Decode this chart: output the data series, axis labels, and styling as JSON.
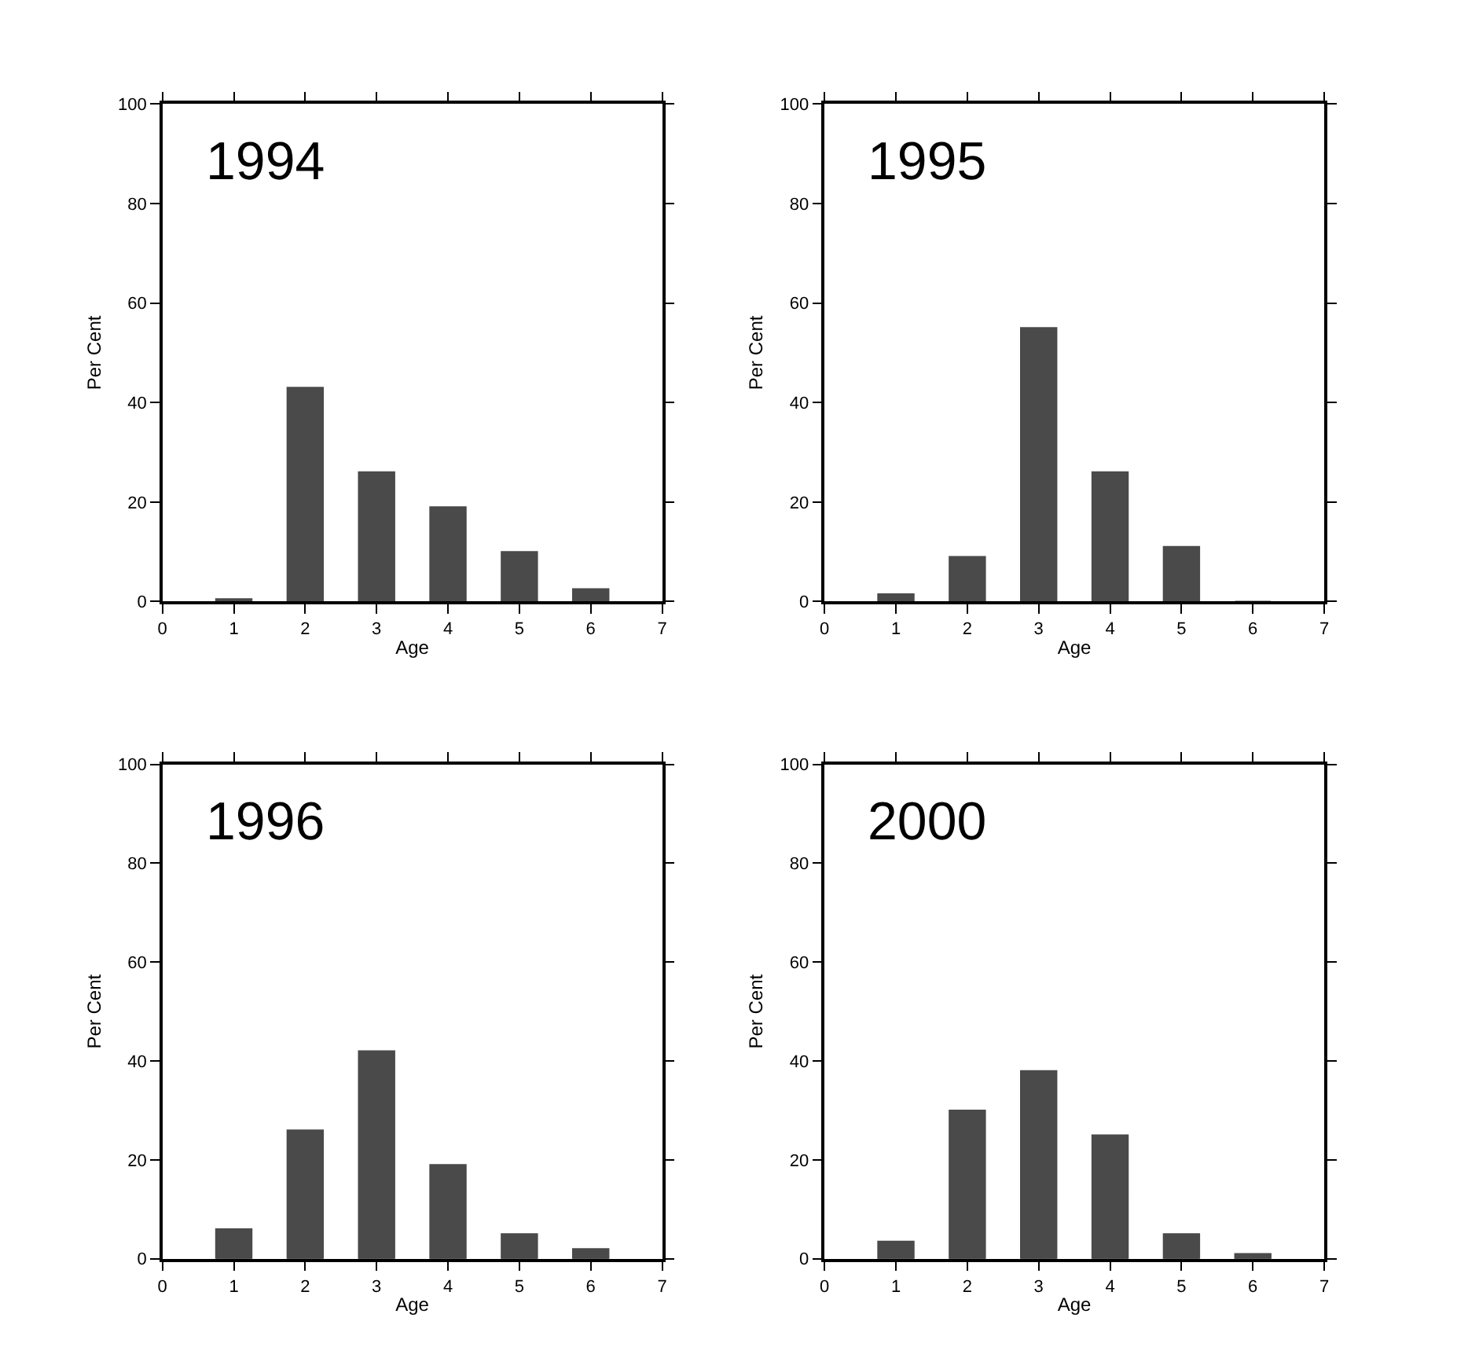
{
  "chart_data": [
    {
      "type": "bar",
      "title": "1994",
      "xlabel": "Age",
      "ylabel": "Per Cent",
      "x": [
        1,
        2,
        3,
        4,
        5,
        6
      ],
      "values": [
        0.5,
        43,
        26,
        19,
        10,
        2.5
      ],
      "color": "#4a4a4a",
      "xlim": [
        0,
        7
      ],
      "xticks": [
        0,
        1,
        2,
        3,
        4,
        5,
        6,
        7
      ],
      "ylim": [
        0,
        100
      ],
      "yticks": [
        0,
        20,
        40,
        60,
        80,
        100
      ]
    },
    {
      "type": "bar",
      "title": "1995",
      "xlabel": "Age",
      "ylabel": "Per Cent",
      "x": [
        1,
        2,
        3,
        4,
        5,
        6
      ],
      "values": [
        1.5,
        9,
        55,
        26,
        11,
        0
      ],
      "color": "#4a4a4a",
      "xlim": [
        0,
        7
      ],
      "xticks": [
        0,
        1,
        2,
        3,
        4,
        5,
        6,
        7
      ],
      "ylim": [
        0,
        100
      ],
      "yticks": [
        0,
        20,
        40,
        60,
        80,
        100
      ]
    },
    {
      "type": "bar",
      "title": "1996",
      "xlabel": "Age",
      "ylabel": "Per Cent",
      "x": [
        1,
        2,
        3,
        4,
        5,
        6
      ],
      "values": [
        6,
        26,
        42,
        19,
        5,
        2
      ],
      "color": "#4a4a4a",
      "xlim": [
        0,
        7
      ],
      "xticks": [
        0,
        1,
        2,
        3,
        4,
        5,
        6,
        7
      ],
      "ylim": [
        0,
        100
      ],
      "yticks": [
        0,
        20,
        40,
        60,
        80,
        100
      ]
    },
    {
      "type": "bar",
      "title": "2000",
      "xlabel": "Age",
      "ylabel": "Per Cent",
      "x": [
        1,
        2,
        3,
        4,
        5,
        6
      ],
      "values": [
        3.5,
        30,
        38,
        25,
        5,
        1
      ],
      "color": "#4a4a4a",
      "xlim": [
        0,
        7
      ],
      "xticks": [
        0,
        1,
        2,
        3,
        4,
        5,
        6,
        7
      ],
      "ylim": [
        0,
        100
      ],
      "yticks": [
        0,
        20,
        40,
        60,
        80,
        100
      ]
    }
  ]
}
